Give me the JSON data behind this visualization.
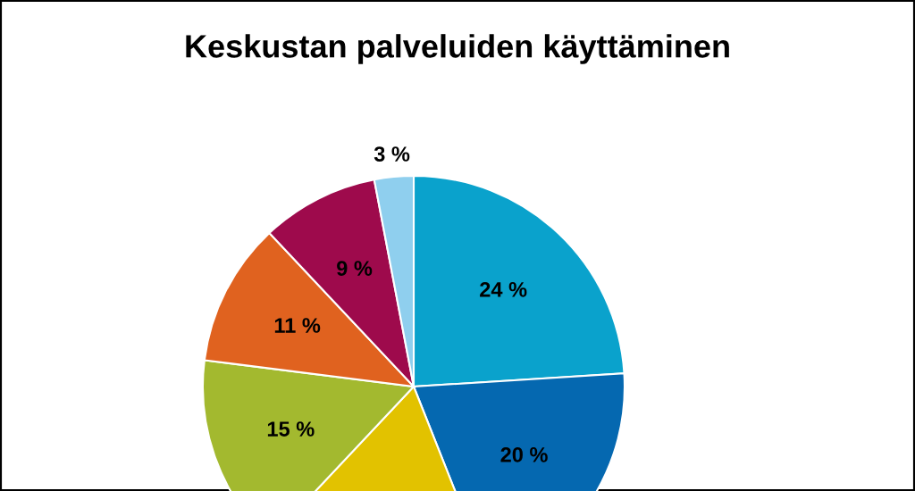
{
  "chart_data": {
    "type": "pie",
    "title": "Keskustan palveluiden käyttäminen",
    "categories": [
      null,
      null,
      null,
      null,
      null,
      null,
      null
    ],
    "values": [
      24,
      20,
      18,
      15,
      11,
      9,
      3
    ],
    "colors": [
      "#0aa2cc",
      "#0568b0",
      "#e2c200",
      "#a3b92f",
      "#e0621f",
      "#9e0a4c",
      "#8fcfee"
    ],
    "value_labels": [
      "24 %",
      "20 %",
      null,
      "15 %",
      "11 %",
      "9 %",
      "3 %"
    ]
  }
}
